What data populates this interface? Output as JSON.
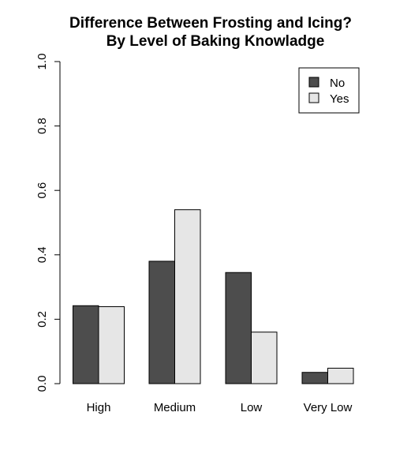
{
  "chart_data": {
    "type": "bar",
    "title": "Difference Between Frosting and Icing?",
    "subtitle": "By Level of Baking Knowladge",
    "xlabel": "",
    "ylabel": "",
    "ylim": [
      0,
      1
    ],
    "yticks": [
      "0.0",
      "0.2",
      "0.4",
      "0.6",
      "0.8",
      "1.0"
    ],
    "categories": [
      "High",
      "Medium",
      "Low",
      "Very Low"
    ],
    "series": [
      {
        "name": "No",
        "color": "#4d4d4d",
        "values": [
          0.242,
          0.38,
          0.345,
          0.035
        ]
      },
      {
        "name": "Yes",
        "color": "#e6e6e6",
        "values": [
          0.239,
          0.54,
          0.16,
          0.048
        ]
      }
    ],
    "grid": false,
    "legend": "top-right"
  }
}
